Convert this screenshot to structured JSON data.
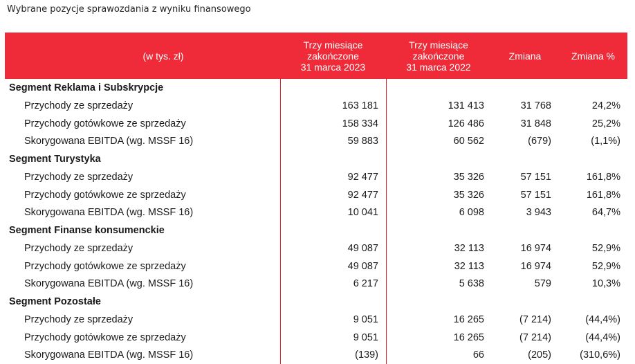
{
  "header": {
    "title": "Wybrane pozycje sprawozdania z wyniku finansowego"
  },
  "table": {
    "columns": [
      [
        "(w tys. zł)"
      ],
      [
        "Trzy miesiące",
        "zakończone",
        "31 marca 2023"
      ],
      [
        "Trzy miesiące",
        "zakończone",
        "31 marca 2022"
      ],
      [
        "Zmiana"
      ],
      [
        "Zmiana %"
      ]
    ],
    "sections": [
      {
        "name": "Segment Reklama i Subskrypcje",
        "rows": [
          [
            "Przychody ze sprzedaży",
            "163 181",
            "131 413",
            "31 768",
            "24,2%"
          ],
          [
            "Przychody gotówkowe ze sprzedaży",
            "158 334",
            "126 486",
            "31 848",
            "25,2%"
          ],
          [
            "Skorygowana EBITDA (wg. MSSF 16)",
            "59 883",
            "60 562",
            "(679)",
            "(1,1%)"
          ]
        ]
      },
      {
        "name": "Segment Turystyka",
        "rows": [
          [
            "Przychody ze sprzedaży",
            "92 477",
            "35 326",
            "57 151",
            "161,8%"
          ],
          [
            "Przychody gotówkowe ze sprzedaży",
            "92 477",
            "35 326",
            "57 151",
            "161,8%"
          ],
          [
            "Skorygowana EBITDA (wg. MSSF 16)",
            "10 041",
            "6 098",
            "3 943",
            "64,7%"
          ]
        ]
      },
      {
        "name": "Segment Finanse konsumenckie",
        "rows": [
          [
            "Przychody ze sprzedaży",
            "49 087",
            "32 113",
            "16 974",
            "52,9%"
          ],
          [
            "Przychody gotówkowe ze sprzedaży",
            "49 087",
            "32 113",
            "16 974",
            "52,9%"
          ],
          [
            "Skorygowana EBITDA (wg. MSSF 16)",
            "6 217",
            "5 638",
            "579",
            "10,3%"
          ]
        ]
      },
      {
        "name": "Segment Pozostałe",
        "rows": [
          [
            "Przychody ze sprzedaży",
            "9 051",
            "16 265",
            "(7 214)",
            "(44,4%)"
          ],
          [
            "Przychody gotówkowe ze sprzedaży",
            "9 051",
            "16 265",
            "(7 214)",
            "(44,4%)"
          ],
          [
            "Skorygowana EBITDA (wg. MSSF 16)",
            "(139)",
            "66",
            "(205)",
            "(310,6%)"
          ]
        ]
      }
    ]
  }
}
